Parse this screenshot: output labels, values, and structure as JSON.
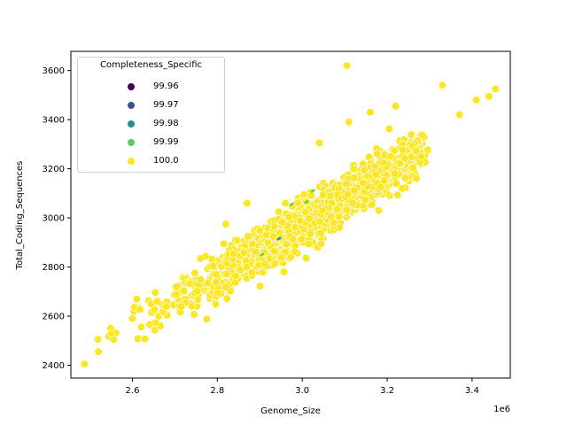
{
  "chart_data": {
    "type": "scatter",
    "title": "",
    "xlabel": "Genome_Size",
    "ylabel": "Total_Coding_Sequences",
    "x_offset_label": "1e6",
    "xlim": [
      2.455,
      3.49
    ],
    "ylim": [
      2348,
      3678
    ],
    "x_ticks": [
      2.6,
      2.8,
      3.0,
      3.2,
      3.4
    ],
    "x_tick_labels": [
      "2.6",
      "2.8",
      "3.0",
      "3.2",
      "3.4"
    ],
    "y_ticks": [
      2400,
      2600,
      2800,
      3000,
      3200,
      3400,
      3600
    ],
    "y_tick_labels": [
      "2400",
      "2600",
      "2800",
      "3000",
      "3200",
      "3400",
      "3600"
    ],
    "grid": false,
    "legend_position": "upper left",
    "legend": {
      "title": "Completeness_Specific",
      "entries": [
        {
          "label": "99.96",
          "color": "#440154"
        },
        {
          "label": "99.97",
          "color": "#3b528b"
        },
        {
          "label": "99.98",
          "color": "#21918c"
        },
        {
          "label": "99.99",
          "color": "#5ec962"
        },
        {
          "label": "100.0",
          "color": "#fde725"
        }
      ]
    },
    "trend": {
      "description": "strong positive linear relation, ~1000 CDS per 1e6 bp",
      "x_start": 2.49,
      "y_start": 2440,
      "x_end": 3.46,
      "y_end": 3460
    },
    "cloud": {
      "n": 1400,
      "x_min": 2.5,
      "x_max": 3.3,
      "mean_x": 3.0,
      "sd_x": 0.16,
      "noise_sd": 45
    },
    "points_approx": [
      {
        "x": 2.487,
        "y": 2405,
        "completeness": 100.0
      },
      {
        "x": 2.52,
        "y": 2455,
        "completeness": 100.0
      },
      {
        "x": 2.55,
        "y": 2530,
        "completeness": 100.0
      },
      {
        "x": 2.6,
        "y": 2590,
        "completeness": 100.0
      },
      {
        "x": 2.61,
        "y": 2670,
        "completeness": 100.0
      },
      {
        "x": 2.68,
        "y": 2640,
        "completeness": 100.0
      },
      {
        "x": 2.76,
        "y": 2835,
        "completeness": 100.0
      },
      {
        "x": 2.82,
        "y": 2975,
        "completeness": 100.0
      },
      {
        "x": 2.87,
        "y": 3060,
        "completeness": 100.0
      },
      {
        "x": 2.95,
        "y": 2920,
        "completeness": 99.98
      },
      {
        "x": 2.96,
        "y": 3060,
        "completeness": 100.0
      },
      {
        "x": 3.01,
        "y": 3065,
        "completeness": 99.99
      },
      {
        "x": 3.04,
        "y": 3305,
        "completeness": 100.0
      },
      {
        "x": 3.105,
        "y": 3620,
        "completeness": 100.0
      },
      {
        "x": 3.11,
        "y": 3390,
        "completeness": 100.0
      },
      {
        "x": 3.16,
        "y": 3430,
        "completeness": 100.0
      },
      {
        "x": 3.22,
        "y": 3455,
        "completeness": 100.0
      },
      {
        "x": 3.28,
        "y": 3250,
        "completeness": 100.0
      },
      {
        "x": 3.33,
        "y": 3540,
        "completeness": 100.0
      },
      {
        "x": 3.37,
        "y": 3420,
        "completeness": 100.0
      },
      {
        "x": 3.41,
        "y": 3480,
        "completeness": 100.0
      },
      {
        "x": 3.44,
        "y": 3495,
        "completeness": 100.0
      },
      {
        "x": 3.455,
        "y": 3525,
        "completeness": 100.0
      }
    ],
    "highlight_points": [
      {
        "x": 2.945,
        "y": 2915,
        "color": "#21918c"
      },
      {
        "x": 3.01,
        "y": 3065,
        "color": "#5ec962"
      },
      {
        "x": 2.975,
        "y": 3055,
        "color": "#5ec962"
      },
      {
        "x": 3.025,
        "y": 3110,
        "color": "#5ec962"
      },
      {
        "x": 2.905,
        "y": 2850,
        "color": "#5ec962"
      }
    ]
  }
}
